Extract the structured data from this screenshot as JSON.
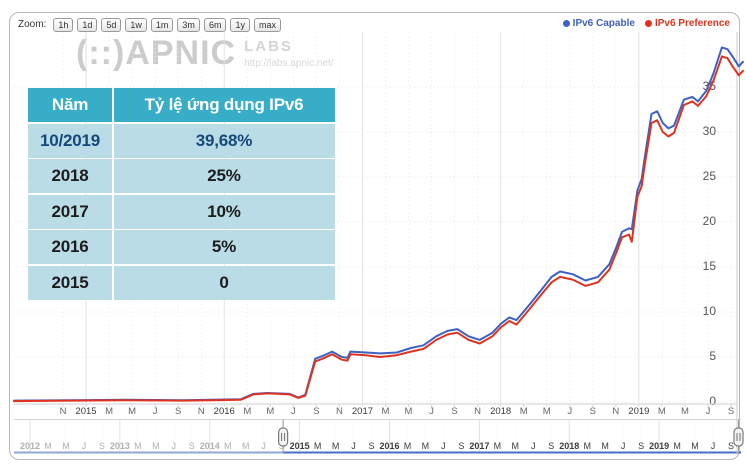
{
  "toolbar": {
    "zoom_label": "Zoom:",
    "buttons": [
      "1h",
      "1d",
      "5d",
      "1w",
      "1m",
      "3m",
      "6m",
      "1y",
      "max"
    ]
  },
  "legend": {
    "items": [
      {
        "label": "IPv6 Capable",
        "color": "#3E62C4"
      },
      {
        "label": "IPv6 Preference",
        "color": "#E0331F"
      }
    ]
  },
  "watermark": {
    "brand": "(::)APNIC",
    "labs": "LABS",
    "url": "http://labs.apnic.net/"
  },
  "table": {
    "header": [
      "Năm",
      "Tỷ lệ ứng dụng IPv6"
    ],
    "rows": [
      [
        "10/2019",
        "39,68%"
      ],
      [
        "2018",
        "25%"
      ],
      [
        "2017",
        "10%"
      ],
      [
        "2016",
        "5%"
      ],
      [
        "2015",
        "0"
      ]
    ],
    "header_bg": "#38ADC8",
    "row_bg": "#BADCE6",
    "highlight_text_color": "#15497B"
  },
  "chart_data": {
    "type": "line",
    "title": "",
    "xlabel": "",
    "ylabel": "",
    "ylim": [
      0,
      40
    ],
    "yticks": [
      0,
      5,
      10,
      15,
      20,
      25,
      30,
      35
    ],
    "grid": true,
    "legend_position": "top-right",
    "x_range_decimal_years": [
      2014.6,
      2019.78
    ],
    "x_axis_labels": [
      "N",
      "2015",
      "M",
      "M",
      "J",
      "S",
      "N",
      "2016",
      "M",
      "M",
      "J",
      "S",
      "N",
      "2017",
      "M",
      "M",
      "J",
      "S",
      "N",
      "2018",
      "M",
      "M",
      "J",
      "S",
      "N",
      "2019",
      "M",
      "M",
      "J",
      "S"
    ],
    "navigator_labels": [
      "2012",
      "M",
      "M",
      "J",
      "S",
      "2013",
      "M",
      "M",
      "J",
      "S",
      "2014",
      "M",
      "M",
      "J",
      "S",
      "2015",
      "M",
      "M",
      "J",
      "S",
      "2016",
      "M",
      "M",
      "J",
      "S",
      "2017",
      "M",
      "M",
      "J",
      "S",
      "2018",
      "M",
      "M",
      "J",
      "S",
      "2019",
      "M",
      "M",
      "J",
      "S"
    ],
    "navigator_selected_from_label_index": 15,
    "series": [
      {
        "name": "IPv6 Capable",
        "color": "#3E62C4",
        "points": [
          [
            2014.6,
            0.15
          ],
          [
            2015.0,
            0.2
          ],
          [
            2015.4,
            0.25
          ],
          [
            2015.8,
            0.2
          ],
          [
            2016.0,
            0.25
          ],
          [
            2016.21,
            0.3
          ],
          [
            2016.3,
            0.9
          ],
          [
            2016.4,
            1.0
          ],
          [
            2016.56,
            0.9
          ],
          [
            2016.62,
            0.5
          ],
          [
            2016.67,
            0.8
          ],
          [
            2016.74,
            4.8
          ],
          [
            2016.79,
            5.1
          ],
          [
            2016.86,
            5.6
          ],
          [
            2016.93,
            5.0
          ],
          [
            2016.97,
            4.9
          ],
          [
            2016.99,
            5.6
          ],
          [
            2017.1,
            5.5
          ],
          [
            2017.2,
            5.4
          ],
          [
            2017.32,
            5.5
          ],
          [
            2017.42,
            6.0
          ],
          [
            2017.51,
            6.3
          ],
          [
            2017.6,
            7.3
          ],
          [
            2017.68,
            7.9
          ],
          [
            2017.75,
            8.1
          ],
          [
            2017.83,
            7.3
          ],
          [
            2017.91,
            6.9
          ],
          [
            2018.0,
            7.7
          ],
          [
            2018.06,
            8.7
          ],
          [
            2018.12,
            9.4
          ],
          [
            2018.17,
            9.1
          ],
          [
            2018.23,
            10.2
          ],
          [
            2018.34,
            12.3
          ],
          [
            2018.42,
            13.9
          ],
          [
            2018.48,
            14.5
          ],
          [
            2018.57,
            14.2
          ],
          [
            2018.66,
            13.5
          ],
          [
            2018.75,
            13.9
          ],
          [
            2018.83,
            15.3
          ],
          [
            2018.88,
            17.2
          ],
          [
            2018.92,
            18.9
          ],
          [
            2018.97,
            19.3
          ],
          [
            2018.99,
            19.2
          ],
          [
            2019.03,
            23.5
          ],
          [
            2019.06,
            24.8
          ],
          [
            2019.08,
            27.0
          ],
          [
            2019.13,
            32.0
          ],
          [
            2019.17,
            32.3
          ],
          [
            2019.21,
            31.0
          ],
          [
            2019.25,
            30.4
          ],
          [
            2019.29,
            30.7
          ],
          [
            2019.36,
            33.6
          ],
          [
            2019.42,
            33.9
          ],
          [
            2019.46,
            33.4
          ],
          [
            2019.52,
            34.6
          ],
          [
            2019.57,
            36.5
          ],
          [
            2019.63,
            39.4
          ],
          [
            2019.67,
            39.2
          ],
          [
            2019.71,
            38.3
          ],
          [
            2019.75,
            37.3
          ],
          [
            2019.78,
            37.8
          ]
        ]
      },
      {
        "name": "IPv6 Preference",
        "color": "#E0331F",
        "points": [
          [
            2014.6,
            0.1
          ],
          [
            2015.0,
            0.15
          ],
          [
            2015.4,
            0.2
          ],
          [
            2015.8,
            0.15
          ],
          [
            2016.0,
            0.2
          ],
          [
            2016.21,
            0.25
          ],
          [
            2016.3,
            0.85
          ],
          [
            2016.4,
            0.95
          ],
          [
            2016.56,
            0.85
          ],
          [
            2016.62,
            0.45
          ],
          [
            2016.67,
            0.7
          ],
          [
            2016.74,
            4.5
          ],
          [
            2016.79,
            4.8
          ],
          [
            2016.86,
            5.3
          ],
          [
            2016.93,
            4.7
          ],
          [
            2016.97,
            4.6
          ],
          [
            2016.99,
            5.3
          ],
          [
            2017.1,
            5.2
          ],
          [
            2017.2,
            5.0
          ],
          [
            2017.32,
            5.2
          ],
          [
            2017.42,
            5.6
          ],
          [
            2017.51,
            5.9
          ],
          [
            2017.6,
            6.9
          ],
          [
            2017.68,
            7.5
          ],
          [
            2017.75,
            7.7
          ],
          [
            2017.83,
            6.9
          ],
          [
            2017.91,
            6.5
          ],
          [
            2018.0,
            7.3
          ],
          [
            2018.06,
            8.3
          ],
          [
            2018.12,
            9.0
          ],
          [
            2018.17,
            8.6
          ],
          [
            2018.23,
            9.7
          ],
          [
            2018.34,
            11.8
          ],
          [
            2018.42,
            13.3
          ],
          [
            2018.48,
            13.9
          ],
          [
            2018.57,
            13.6
          ],
          [
            2018.66,
            12.9
          ],
          [
            2018.75,
            13.3
          ],
          [
            2018.83,
            14.7
          ],
          [
            2018.88,
            16.6
          ],
          [
            2018.92,
            18.3
          ],
          [
            2018.97,
            18.6
          ],
          [
            2018.99,
            17.8
          ],
          [
            2019.03,
            22.8
          ],
          [
            2019.06,
            24.0
          ],
          [
            2019.08,
            26.2
          ],
          [
            2019.13,
            31.0
          ],
          [
            2019.17,
            31.3
          ],
          [
            2019.21,
            30.0
          ],
          [
            2019.25,
            29.5
          ],
          [
            2019.29,
            29.9
          ],
          [
            2019.36,
            33.0
          ],
          [
            2019.42,
            33.4
          ],
          [
            2019.46,
            32.9
          ],
          [
            2019.52,
            34.0
          ],
          [
            2019.57,
            35.7
          ],
          [
            2019.63,
            38.4
          ],
          [
            2019.67,
            38.2
          ],
          [
            2019.71,
            37.2
          ],
          [
            2019.75,
            36.3
          ],
          [
            2019.78,
            36.8
          ]
        ]
      }
    ]
  }
}
